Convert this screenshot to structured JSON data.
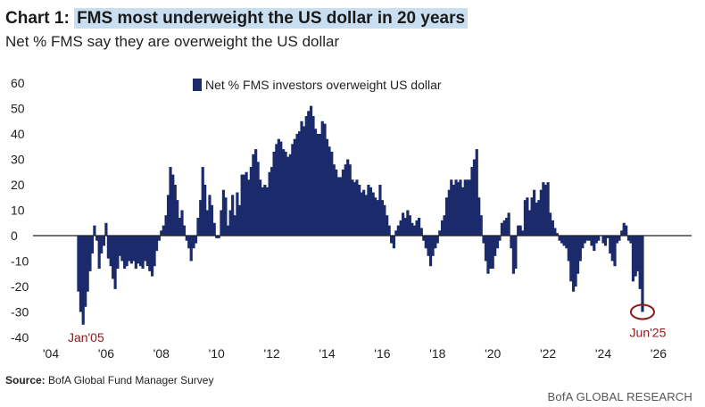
{
  "title": {
    "prefix": "Chart 1:",
    "highlight": "FMS most underweight the US dollar in 20 years"
  },
  "subtitle": "Net % FMS say they are overweight the US dollar",
  "source": {
    "label": "Source:",
    "text": "BofA Global Fund Manager Survey"
  },
  "brand": "BofA GLOBAL RESEARCH",
  "colors": {
    "bar": "#1b2a6b",
    "annotation": "#8b1a1a",
    "highlight": "#c9def0"
  },
  "chart_data": {
    "type": "bar",
    "legend": "Net % FMS investors overweight US dollar",
    "legend_position": "top-center",
    "grid": false,
    "ylim": [
      -40,
      60
    ],
    "yticks": [
      -40,
      -30,
      -20,
      -10,
      0,
      10,
      20,
      30,
      40,
      50,
      60
    ],
    "xlim": [
      2004.0,
      2026.1
    ],
    "xticks": [
      {
        "value": 2004,
        "label": "'04"
      },
      {
        "value": 2006,
        "label": "'06"
      },
      {
        "value": 2008,
        "label": "'08"
      },
      {
        "value": 2010,
        "label": "'10"
      },
      {
        "value": 2012,
        "label": "'12"
      },
      {
        "value": 2014,
        "label": "'14"
      },
      {
        "value": 2016,
        "label": "'16"
      },
      {
        "value": 2018,
        "label": "'18"
      },
      {
        "value": 2020,
        "label": "'20"
      },
      {
        "value": 2022,
        "label": "'22"
      },
      {
        "value": 2024,
        "label": "'24"
      },
      {
        "value": 2026,
        "label": "'26"
      }
    ],
    "annotations": [
      {
        "label": "Jan'05",
        "x": 2005.0
      },
      {
        "label": "Jun'25",
        "x": 2025.42,
        "circled_value": -30
      }
    ],
    "series": [
      {
        "values": [
          [
            2005.0,
            -22
          ],
          [
            2005.08,
            -30
          ],
          [
            2005.17,
            -35
          ],
          [
            2005.25,
            -28
          ],
          [
            2005.33,
            -22
          ],
          [
            2005.42,
            -14
          ],
          [
            2005.5,
            -7
          ],
          [
            2005.58,
            4
          ],
          [
            2005.67,
            -2
          ],
          [
            2005.75,
            -13
          ],
          [
            2005.83,
            -7
          ],
          [
            2005.92,
            -4
          ],
          [
            2006.0,
            5
          ],
          [
            2006.08,
            -9
          ],
          [
            2006.17,
            -12
          ],
          [
            2006.25,
            -17
          ],
          [
            2006.33,
            -21
          ],
          [
            2006.42,
            -13
          ],
          [
            2006.5,
            -8
          ],
          [
            2006.58,
            -10
          ],
          [
            2006.67,
            -13
          ],
          [
            2006.75,
            -12
          ],
          [
            2006.83,
            -10
          ],
          [
            2006.92,
            -11
          ],
          [
            2007.0,
            -10
          ],
          [
            2007.08,
            -13
          ],
          [
            2007.17,
            -11
          ],
          [
            2007.25,
            -12
          ],
          [
            2007.33,
            -13
          ],
          [
            2007.42,
            -10
          ],
          [
            2007.5,
            -12
          ],
          [
            2007.58,
            -14
          ],
          [
            2007.67,
            -16
          ],
          [
            2007.75,
            -12
          ],
          [
            2007.83,
            -6
          ],
          [
            2007.92,
            -2
          ],
          [
            2008.0,
            2
          ],
          [
            2008.08,
            4
          ],
          [
            2008.17,
            8
          ],
          [
            2008.25,
            16
          ],
          [
            2008.33,
            27
          ],
          [
            2008.42,
            24
          ],
          [
            2008.5,
            20
          ],
          [
            2008.58,
            14
          ],
          [
            2008.67,
            7
          ],
          [
            2008.75,
            10
          ],
          [
            2008.83,
            4
          ],
          [
            2008.92,
            -2
          ],
          [
            2009.0,
            -5
          ],
          [
            2009.08,
            -10
          ],
          [
            2009.17,
            -5
          ],
          [
            2009.25,
            -3
          ],
          [
            2009.33,
            7
          ],
          [
            2009.42,
            14
          ],
          [
            2009.5,
            27
          ],
          [
            2009.58,
            20
          ],
          [
            2009.67,
            10
          ],
          [
            2009.75,
            16
          ],
          [
            2009.83,
            12
          ],
          [
            2009.92,
            5
          ],
          [
            2010.0,
            -1
          ],
          [
            2010.08,
            -1
          ],
          [
            2010.17,
            10
          ],
          [
            2010.25,
            18
          ],
          [
            2010.33,
            15
          ],
          [
            2010.42,
            4
          ],
          [
            2010.5,
            10
          ],
          [
            2010.58,
            16
          ],
          [
            2010.67,
            8
          ],
          [
            2010.75,
            17
          ],
          [
            2010.83,
            12
          ],
          [
            2010.92,
            24
          ],
          [
            2011.0,
            24
          ],
          [
            2011.08,
            25
          ],
          [
            2011.17,
            22
          ],
          [
            2011.25,
            27
          ],
          [
            2011.33,
            32
          ],
          [
            2011.42,
            34
          ],
          [
            2011.5,
            29
          ],
          [
            2011.58,
            22
          ],
          [
            2011.67,
            19
          ],
          [
            2011.75,
            20
          ],
          [
            2011.83,
            19
          ],
          [
            2011.92,
            25
          ],
          [
            2012.0,
            27
          ],
          [
            2012.08,
            33
          ],
          [
            2012.17,
            36
          ],
          [
            2012.25,
            38
          ],
          [
            2012.33,
            37
          ],
          [
            2012.42,
            34
          ],
          [
            2012.5,
            33
          ],
          [
            2012.58,
            31
          ],
          [
            2012.67,
            32
          ],
          [
            2012.75,
            36
          ],
          [
            2012.83,
            38
          ],
          [
            2012.92,
            40
          ],
          [
            2013.0,
            41
          ],
          [
            2013.08,
            45
          ],
          [
            2013.17,
            43
          ],
          [
            2013.25,
            47
          ],
          [
            2013.33,
            49
          ],
          [
            2013.42,
            51
          ],
          [
            2013.5,
            47
          ],
          [
            2013.58,
            42
          ],
          [
            2013.67,
            40
          ],
          [
            2013.75,
            40
          ],
          [
            2013.83,
            45
          ],
          [
            2013.92,
            44
          ],
          [
            2014.0,
            38
          ],
          [
            2014.08,
            35
          ],
          [
            2014.17,
            33
          ],
          [
            2014.25,
            28
          ],
          [
            2014.33,
            26
          ],
          [
            2014.42,
            23
          ],
          [
            2014.5,
            23
          ],
          [
            2014.58,
            26
          ],
          [
            2014.67,
            28
          ],
          [
            2014.75,
            30
          ],
          [
            2014.83,
            28
          ],
          [
            2014.92,
            22
          ],
          [
            2015.0,
            21
          ],
          [
            2015.08,
            22
          ],
          [
            2015.17,
            20
          ],
          [
            2015.25,
            17
          ],
          [
            2015.33,
            18
          ],
          [
            2015.42,
            16
          ],
          [
            2015.5,
            20
          ],
          [
            2015.58,
            19
          ],
          [
            2015.67,
            17
          ],
          [
            2015.75,
            15
          ],
          [
            2015.83,
            14
          ],
          [
            2015.92,
            20
          ],
          [
            2016.0,
            14
          ],
          [
            2016.08,
            12
          ],
          [
            2016.17,
            8
          ],
          [
            2016.25,
            4
          ],
          [
            2016.33,
            -3
          ],
          [
            2016.42,
            -5
          ],
          [
            2016.5,
            2
          ],
          [
            2016.58,
            4
          ],
          [
            2016.67,
            6
          ],
          [
            2016.75,
            9
          ],
          [
            2016.83,
            7
          ],
          [
            2016.92,
            10
          ],
          [
            2017.0,
            8
          ],
          [
            2017.08,
            5
          ],
          [
            2017.17,
            4
          ],
          [
            2017.25,
            6
          ],
          [
            2017.33,
            7
          ],
          [
            2017.42,
            3
          ],
          [
            2017.5,
            -2
          ],
          [
            2017.58,
            -5
          ],
          [
            2017.67,
            -8
          ],
          [
            2017.75,
            -12
          ],
          [
            2017.83,
            -8
          ],
          [
            2017.92,
            -5
          ],
          [
            2018.0,
            -3
          ],
          [
            2018.08,
            2
          ],
          [
            2018.17,
            6
          ],
          [
            2018.25,
            8
          ],
          [
            2018.33,
            15
          ],
          [
            2018.42,
            18
          ],
          [
            2018.5,
            22
          ],
          [
            2018.58,
            20
          ],
          [
            2018.67,
            22
          ],
          [
            2018.75,
            21
          ],
          [
            2018.83,
            22
          ],
          [
            2018.92,
            19
          ],
          [
            2019.0,
            22
          ],
          [
            2019.08,
            22
          ],
          [
            2019.17,
            22
          ],
          [
            2019.25,
            27
          ],
          [
            2019.33,
            30
          ],
          [
            2019.42,
            34
          ],
          [
            2019.5,
            15
          ],
          [
            2019.58,
            8
          ],
          [
            2019.67,
            -3
          ],
          [
            2019.75,
            -10
          ],
          [
            2019.83,
            -15
          ],
          [
            2019.92,
            -13
          ],
          [
            2020.0,
            -13
          ],
          [
            2020.08,
            -8
          ],
          [
            2020.17,
            -5
          ],
          [
            2020.25,
            -2
          ],
          [
            2020.33,
            5
          ],
          [
            2020.42,
            6
          ],
          [
            2020.5,
            7
          ],
          [
            2020.58,
            9
          ],
          [
            2020.67,
            -5
          ],
          [
            2020.75,
            -15
          ],
          [
            2020.83,
            -13
          ],
          [
            2020.92,
            4
          ],
          [
            2021.0,
            4
          ],
          [
            2021.08,
            2
          ],
          [
            2021.17,
            14
          ],
          [
            2021.25,
            15
          ],
          [
            2021.33,
            10
          ],
          [
            2021.42,
            15
          ],
          [
            2021.5,
            18
          ],
          [
            2021.58,
            13
          ],
          [
            2021.67,
            14
          ],
          [
            2021.75,
            18
          ],
          [
            2021.83,
            21
          ],
          [
            2021.92,
            20
          ],
          [
            2022.0,
            21
          ],
          [
            2022.08,
            9
          ],
          [
            2022.17,
            6
          ],
          [
            2022.25,
            3
          ],
          [
            2022.33,
            1
          ],
          [
            2022.42,
            -2
          ],
          [
            2022.5,
            -3
          ],
          [
            2022.58,
            -4
          ],
          [
            2022.67,
            -5
          ],
          [
            2022.75,
            -10
          ],
          [
            2022.83,
            -18
          ],
          [
            2022.92,
            -22
          ],
          [
            2023.0,
            -20
          ],
          [
            2023.08,
            -15
          ],
          [
            2023.17,
            -10
          ],
          [
            2023.25,
            -5
          ],
          [
            2023.33,
            -3
          ],
          [
            2023.42,
            -2
          ],
          [
            2023.5,
            -2
          ],
          [
            2023.58,
            -4
          ],
          [
            2023.67,
            -6
          ],
          [
            2023.75,
            -3
          ],
          [
            2023.83,
            -2
          ],
          [
            2023.92,
            0
          ],
          [
            2024.0,
            -3
          ],
          [
            2024.08,
            -4
          ],
          [
            2024.17,
            -1
          ],
          [
            2024.25,
            -7
          ],
          [
            2024.33,
            -10
          ],
          [
            2024.42,
            -12
          ],
          [
            2024.5,
            -3
          ],
          [
            2024.58,
            -2
          ],
          [
            2024.67,
            2
          ],
          [
            2024.75,
            5
          ],
          [
            2024.83,
            4
          ],
          [
            2024.92,
            -2
          ],
          [
            2025.0,
            -3
          ],
          [
            2025.08,
            -18
          ],
          [
            2025.17,
            -16
          ],
          [
            2025.25,
            -14
          ],
          [
            2025.33,
            -21
          ],
          [
            2025.42,
            -30
          ]
        ]
      }
    ]
  }
}
